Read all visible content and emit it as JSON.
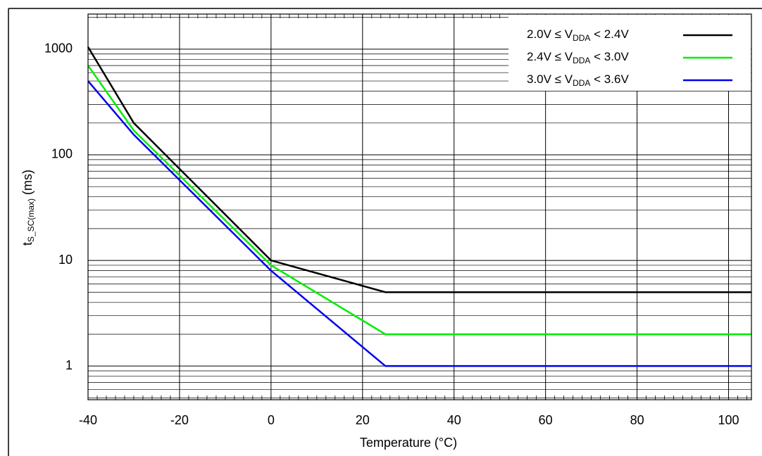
{
  "chart_data": {
    "type": "line",
    "xlabel": "Temperature (°C)",
    "ylabel": [
      "t",
      "S_SC(max)",
      " (ms)"
    ],
    "x": [
      -40,
      -30,
      0,
      25,
      105
    ],
    "series": [
      {
        "name": [
          "2.0V ≤ V",
          "DDA",
          " < 2.4V"
        ],
        "color": "#000000",
        "values": [
          1050,
          200,
          10,
          5,
          5
        ]
      },
      {
        "name": [
          "2.4V ≤ V",
          "DDA",
          " < 3.0V"
        ],
        "color": "#00ee00",
        "values": [
          700,
          170,
          9,
          2,
          2
        ]
      },
      {
        "name": [
          "3.0V ≤ V",
          "DDA",
          " < 3.6V"
        ],
        "color": "#0000ee",
        "values": [
          500,
          155,
          8,
          1,
          1
        ]
      }
    ],
    "xlim": [
      -40,
      105
    ],
    "xticks": [
      -40,
      -20,
      0,
      20,
      40,
      60,
      80,
      100
    ],
    "ylim": [
      0.48,
      2150
    ],
    "yticks": [
      1,
      10,
      100,
      1000
    ],
    "ylog": true,
    "grid": true,
    "legend": "upper right"
  }
}
